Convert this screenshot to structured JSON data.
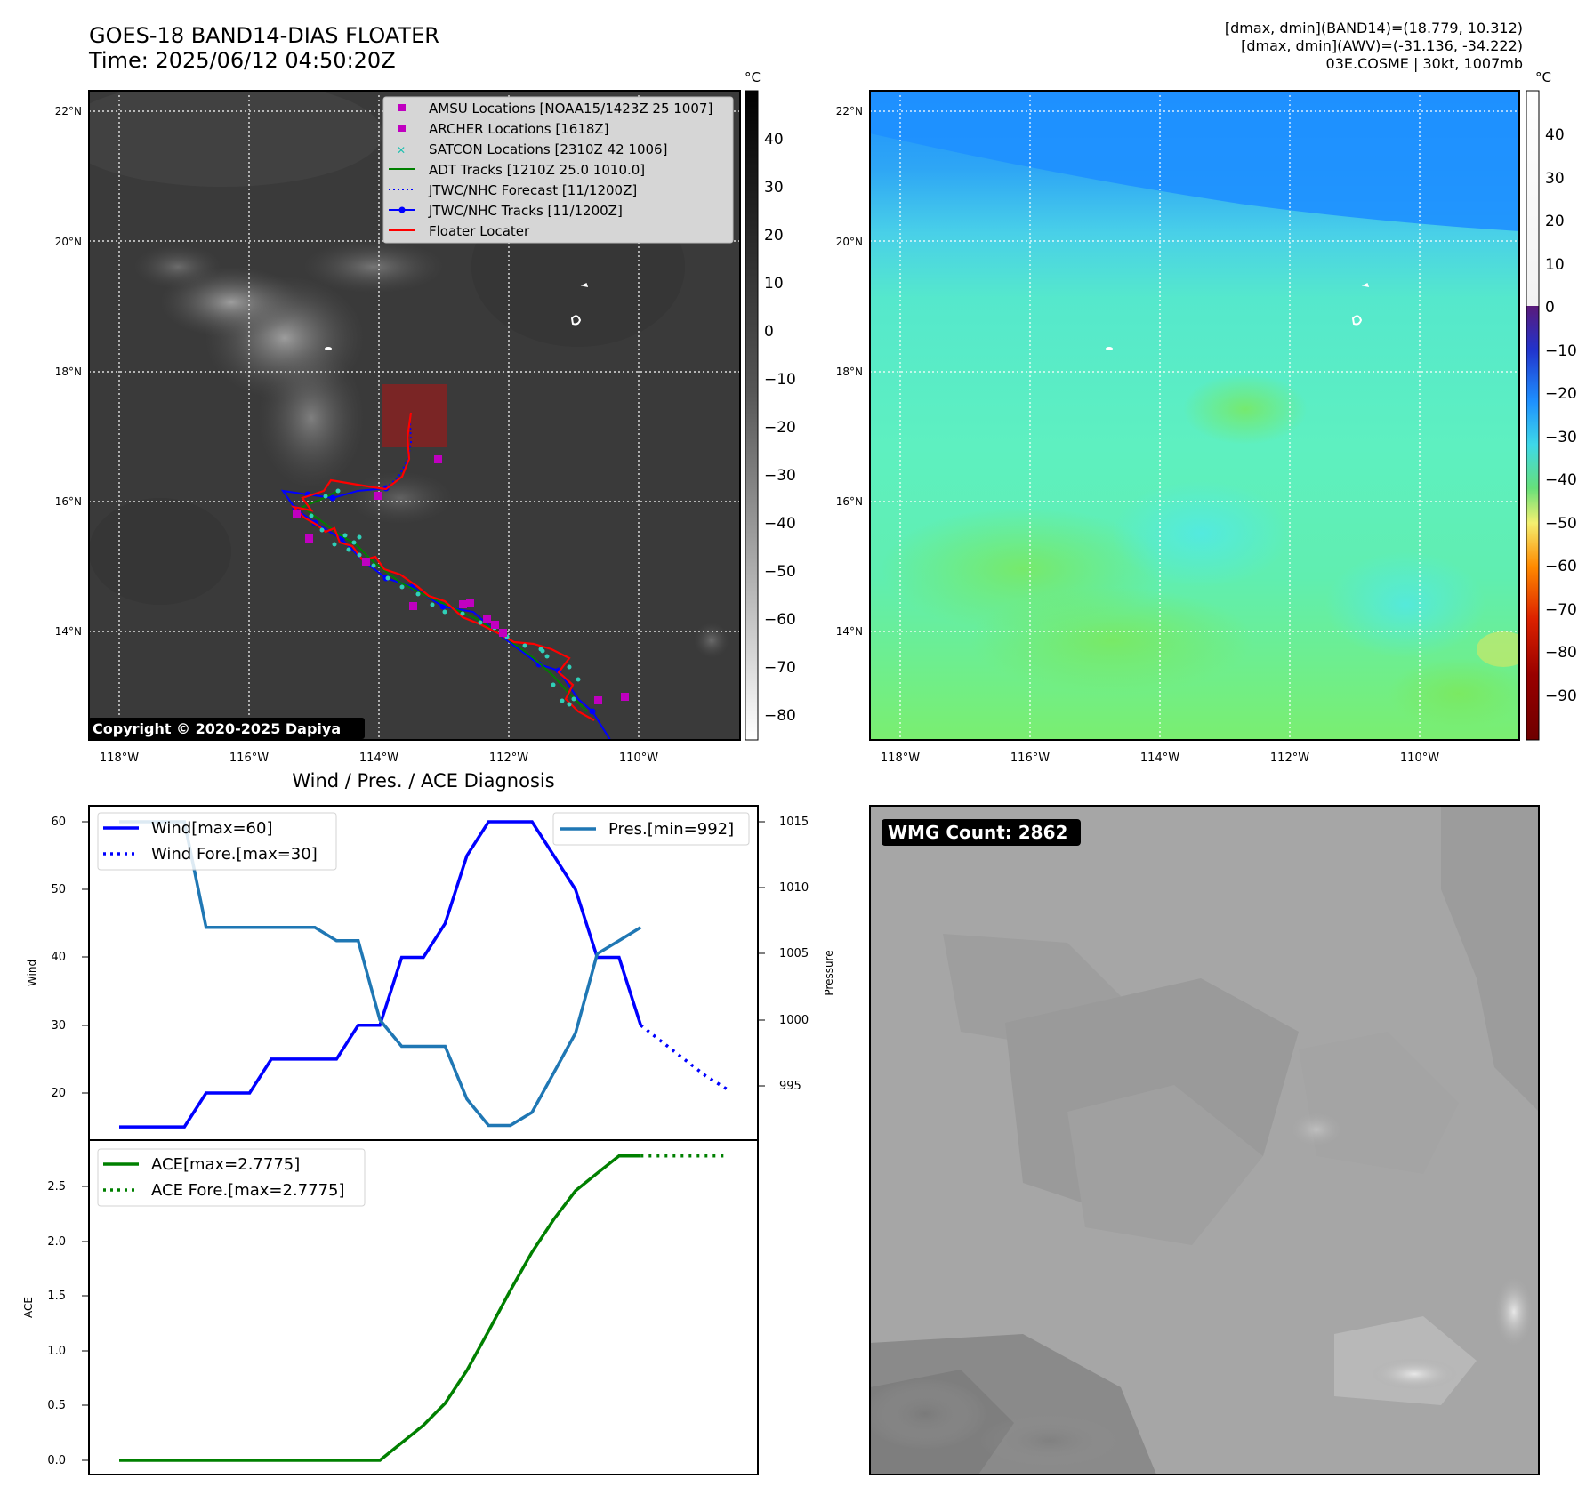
{
  "header": {
    "title_line1": "GOES-18 BAND14-DIAS FLOATER",
    "title_line2": "Time: 2025/06/12 04:50:20Z",
    "info_line1": "[dmax, dmin](BAND14)=(18.779, 10.312)",
    "info_line2": "[dmax, dmin](AWV)=(-31.136, -34.222)",
    "info_line3": "03E.COSME | 30kt, 1007mb"
  },
  "map": {
    "lat_labels": [
      "22°N",
      "20°N",
      "18°N",
      "16°N",
      "14°N"
    ],
    "lon_labels": [
      "118°W",
      "116°W",
      "114°W",
      "112°W",
      "110°W"
    ],
    "copyright": "Copyright © 2020-2025 Dapiya",
    "legend": [
      {
        "label": "AMSU Locations [NOAA15/1423Z 25 1007]",
        "color": "#c000c0",
        "marker": "square"
      },
      {
        "label": "ARCHER Locations [1618Z]",
        "color": "#c000c0",
        "marker": "square"
      },
      {
        "label": "SATCON Locations [2310Z 42 1006]",
        "color": "#20c0b0",
        "marker": "x"
      },
      {
        "label": "ADT Tracks [1210Z 25.0 1010.0]",
        "color": "#008000",
        "marker": "line"
      },
      {
        "label": "JTWC/NHC Forecast [11/1200Z]",
        "color": "#0000ff",
        "marker": "dotted"
      },
      {
        "label": "JTWC/NHC Tracks [11/1200Z]",
        "color": "#0000ff",
        "marker": "line-dot"
      },
      {
        "label": "Floater Locater",
        "color": "#ff0000",
        "marker": "line"
      }
    ],
    "cbar_unit": "°C",
    "cbar_gray_ticks": [
      "40",
      "30",
      "20",
      "10",
      "0",
      "−10",
      "−20",
      "−30",
      "−40",
      "−50",
      "−60",
      "−70",
      "−80"
    ],
    "cbar_color_ticks": [
      "40",
      "30",
      "20",
      "10",
      "0",
      "−10",
      "−20",
      "−30",
      "−40",
      "−50",
      "−60",
      "−70",
      "−80",
      "−90"
    ]
  },
  "diag": {
    "title": "Wind / Pres. / ACE Diagnosis",
    "wind_ylabel": "Wind",
    "pres_ylabel": "Pressure",
    "ace_ylabel": "ACE",
    "wind_legend": [
      "Wind[max=60]",
      "Wind Fore.[max=30]"
    ],
    "pres_legend": "Pres.[min=992]",
    "ace_legend": [
      "ACE[max=2.7775]",
      "ACE Fore.[max=2.7775]"
    ],
    "wind_ticks": [
      "60",
      "50",
      "40",
      "30",
      "20"
    ],
    "pres_ticks": [
      "1015",
      "1010",
      "1005",
      "1000",
      "995"
    ],
    "ace_ticks": [
      "2.5",
      "2.0",
      "1.5",
      "1.0",
      "0.5",
      "0.0"
    ]
  },
  "wmg": {
    "label": "WMG Count: 2862"
  },
  "chart_data": [
    {
      "type": "line",
      "title": "Wind / Pres. / ACE Diagnosis",
      "ylabel": "Wind",
      "ylim": [
        15,
        62
      ],
      "series": [
        {
          "name": "Wind[max=60]",
          "values": [
            15,
            15,
            15,
            15,
            20,
            20,
            20,
            25,
            25,
            25,
            25,
            30,
            30,
            40,
            40,
            45,
            55,
            60,
            60,
            60,
            55,
            50,
            40,
            40,
            30
          ],
          "color": "#0000ff"
        },
        {
          "name": "Wind Fore.[max=30]",
          "values": [
            30,
            27.5,
            25,
            22.5,
            20.5
          ],
          "start_index": 24,
          "color": "#0000ff",
          "style": "dotted"
        }
      ]
    },
    {
      "type": "line",
      "ylabel": "Pressure",
      "ylim": [
        992,
        1015.5
      ],
      "series": [
        {
          "name": "Pres.[min=992]",
          "values": [
            1015,
            1015,
            1015,
            1015,
            1007,
            1007,
            1007,
            1007,
            1007,
            1007,
            1006,
            1006,
            1000,
            998,
            998,
            998,
            994,
            992,
            992,
            993,
            996,
            999,
            1005,
            1006,
            1007
          ],
          "color": "#1f77b4"
        }
      ]
    },
    {
      "type": "line",
      "ylabel": "ACE",
      "ylim": [
        -0.1,
        2.9
      ],
      "series": [
        {
          "name": "ACE[max=2.7775]",
          "values": [
            0,
            0,
            0,
            0,
            0,
            0,
            0,
            0,
            0,
            0,
            0,
            0,
            0,
            0.16,
            0.32,
            0.52,
            0.82,
            1.18,
            1.55,
            1.9,
            2.2,
            2.46,
            2.62,
            2.7775,
            2.7775
          ],
          "color": "#008000"
        },
        {
          "name": "ACE Fore.[max=2.7775]",
          "values": [
            2.7775,
            2.7775,
            2.7775,
            2.7775,
            2.7775
          ],
          "start_index": 24,
          "color": "#008000",
          "style": "dotted"
        }
      ]
    }
  ]
}
